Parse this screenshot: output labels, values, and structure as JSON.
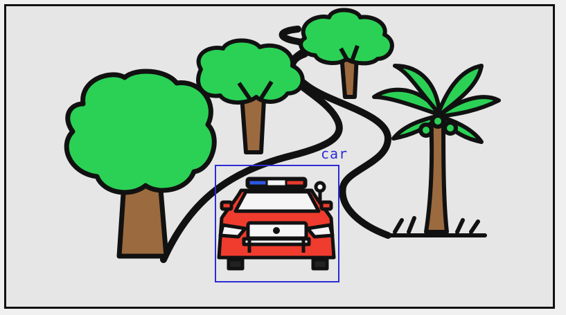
{
  "detection": {
    "label": "car",
    "box_color": "#2b2bd6"
  },
  "scene": {
    "elements": [
      "winding-road",
      "broadleaf-tree",
      "palm-tree",
      "police-car"
    ],
    "colors": {
      "foliage": "#2bd155",
      "trunk": "#9b6a3f",
      "outline": "#111111",
      "car_body": "#f03c2e",
      "siren_blue": "#2d57e0",
      "siren_red": "#e53a2c"
    }
  }
}
